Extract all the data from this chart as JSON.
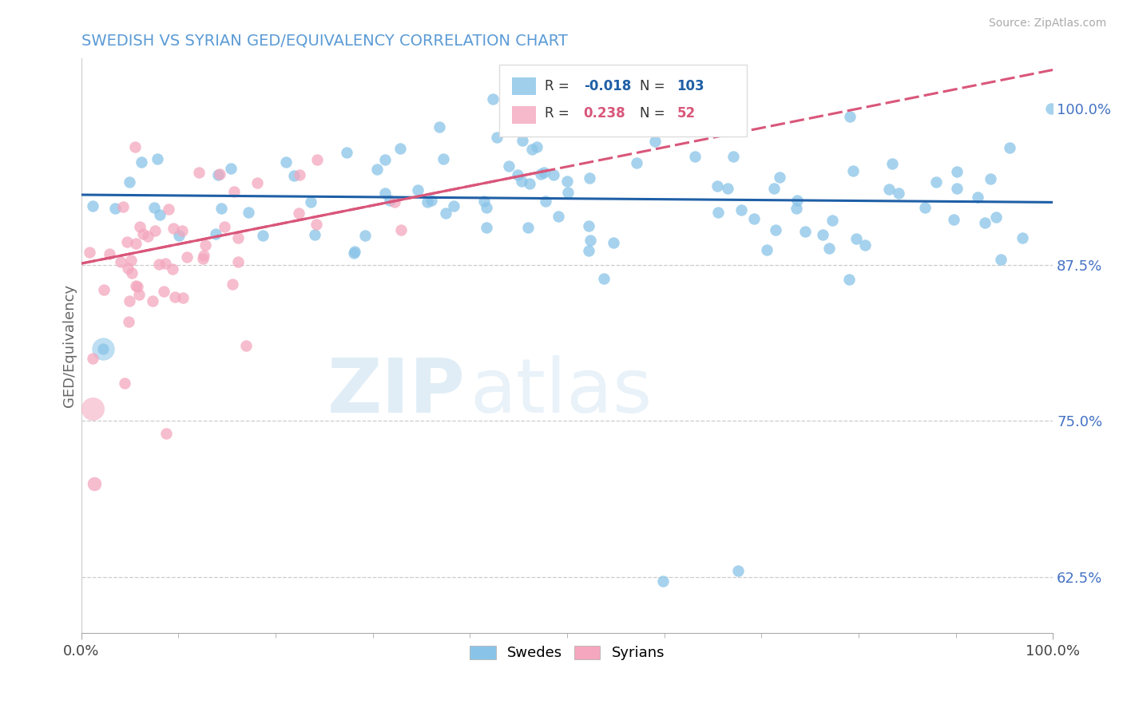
{
  "title": "SWEDISH VS SYRIAN GED/EQUIVALENCY CORRELATION CHART",
  "source": "Source: ZipAtlas.com",
  "ylabel": "GED/Equivalency",
  "xlim": [
    0.0,
    1.0
  ],
  "ylim": [
    0.58,
    1.04
  ],
  "yticks": [
    0.625,
    0.75,
    0.875,
    1.0
  ],
  "ytick_labels": [
    "62.5%",
    "75.0%",
    "87.5%",
    "100.0%"
  ],
  "blue_color": "#89c4e8",
  "pink_color": "#f4a7be",
  "blue_line_color": "#1f5fa6",
  "pink_line_color": "#d9567a",
  "legend_R_blue": "-0.018",
  "legend_N_blue": "103",
  "legend_R_pink": "0.238",
  "legend_N_pink": "52",
  "grid_color": "#cccccc",
  "background_color": "#ffffff",
  "title_color": "#5b9bd5",
  "ytick_color": "#4472c4",
  "xtick_color": "#444444"
}
